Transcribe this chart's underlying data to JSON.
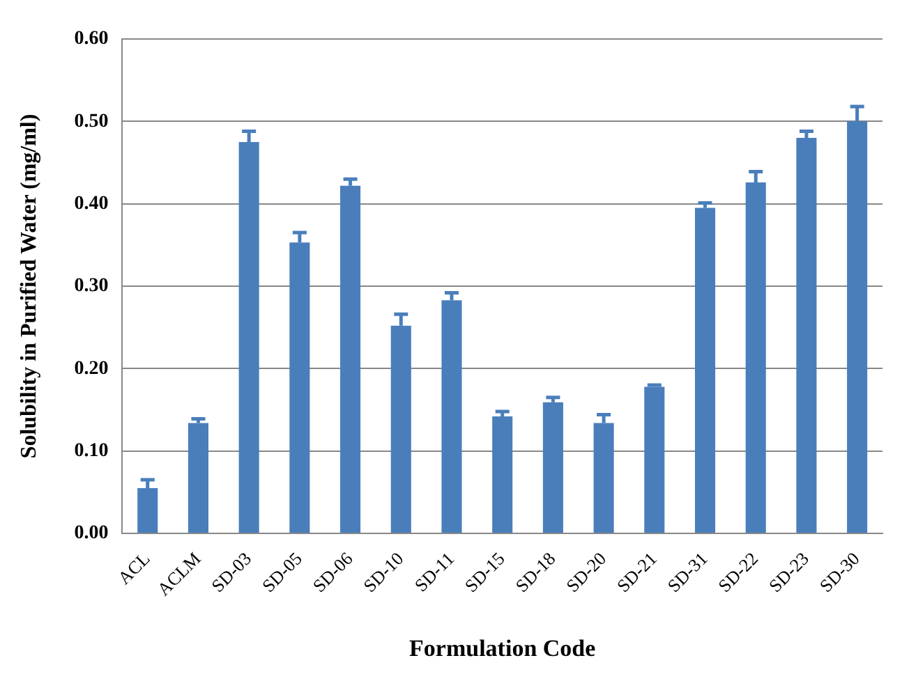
{
  "chart_data": {
    "type": "bar",
    "xlabel": "Formulation Code",
    "ylabel": "Solubility in Purified Water (mg/ml)",
    "categories": [
      "ACL",
      "ACLM",
      "SD-03",
      "SD-05",
      "SD-06",
      "SD-10",
      "SD-11",
      "SD-15",
      "SD-18",
      "SD-20",
      "SD-21",
      "SD-31",
      "SD-22",
      "SD-23",
      "SD-30"
    ],
    "values": [
      0.055,
      0.134,
      0.475,
      0.353,
      0.422,
      0.252,
      0.283,
      0.142,
      0.159,
      0.134,
      0.178,
      0.395,
      0.426,
      0.48,
      0.5
    ],
    "errors": [
      [
        0.055,
        0.065
      ],
      [
        0.134,
        0.139
      ],
      [
        0.475,
        0.488
      ],
      [
        0.353,
        0.365
      ],
      [
        0.422,
        0.43
      ],
      [
        0.252,
        0.266
      ],
      [
        0.283,
        0.292
      ],
      [
        0.142,
        0.148
      ],
      [
        0.159,
        0.165
      ],
      [
        0.134,
        0.144
      ],
      [
        0.178,
        0.18
      ],
      [
        0.395,
        0.401
      ],
      [
        0.426,
        0.439
      ],
      [
        0.48,
        0.488
      ],
      [
        0.5,
        0.518
      ]
    ],
    "color": "#4a7ebb",
    "ylim": [
      0,
      0.6
    ],
    "yticks": [
      {
        "value": 0,
        "label": "0.00"
      },
      {
        "value": 0.1,
        "label": "0.10"
      },
      {
        "value": 0.2,
        "label": "0.20"
      },
      {
        "value": 0.3,
        "label": "0.30"
      },
      {
        "value": 0.4,
        "label": "0.40"
      },
      {
        "value": 0.5,
        "label": "0.50"
      },
      {
        "value": 0.6,
        "label": "0.60"
      }
    ],
    "grid": "y",
    "legend": false
  }
}
